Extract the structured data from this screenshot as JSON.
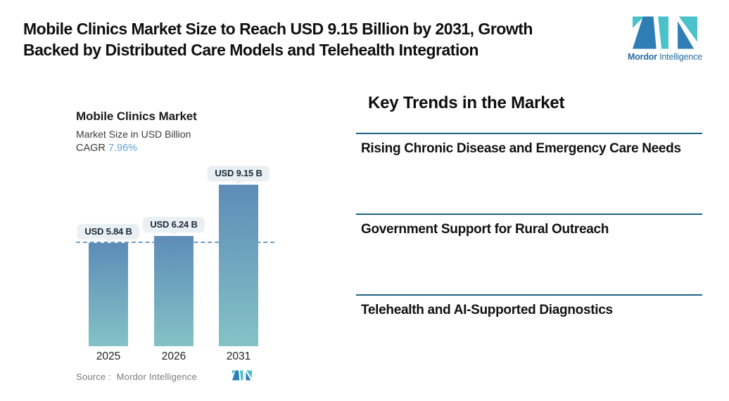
{
  "header": {
    "title_line1": "Mobile Clinics Market Size to Reach USD 9.15 Billion by 2031, Growth",
    "title_line2": "Backed by Distributed Care Models and Telehealth Integration"
  },
  "brand": {
    "name_bold": "Mordor",
    "name_regular": "Intelligence"
  },
  "chart": {
    "title": "Mobile Clinics Market",
    "subtitle": "Market Size in USD Billion",
    "cagr_label": "CAGR",
    "cagr_value": "7.96%",
    "source_label": "Source :  Mordor Intelligence"
  },
  "chart_data": {
    "type": "bar",
    "title": "Mobile Clinics Market",
    "subtitle": "Market Size in USD Billion",
    "cagr": "7.96%",
    "unit": "USD Billion",
    "categories": [
      "2025",
      "2026",
      "2031"
    ],
    "values": [
      5.84,
      6.24,
      9.15
    ],
    "value_labels": [
      "USD 5.84 B",
      "USD 6.24 B",
      "USD 9.15 B"
    ],
    "ylim": [
      0,
      9.15
    ],
    "grid": false,
    "legend": "none",
    "reference_line": {
      "value": 5.84,
      "style": "dashed"
    }
  },
  "trends": {
    "heading": "Key Trends in the Market",
    "items": [
      "Rising Chronic Disease and Emergency Care Needs",
      "Government Support for Rural Outreach",
      "Telehealth and AI-Supported Diagnostics"
    ]
  },
  "colors": {
    "accent_blue": "#2e7eb5",
    "accent_teal": "#49c2ca",
    "brand_text": "#2a6b9f",
    "bar_gradient_top": "#5d8cb7",
    "bar_gradient_bottom": "#84c2c6",
    "dashed_line": "#6b9cc3",
    "bubble_bg": "#e9eff3",
    "bubble_text": "#1b2a3a",
    "trend_rule": "#1b6480",
    "cagr_value": "#64a2d8"
  }
}
